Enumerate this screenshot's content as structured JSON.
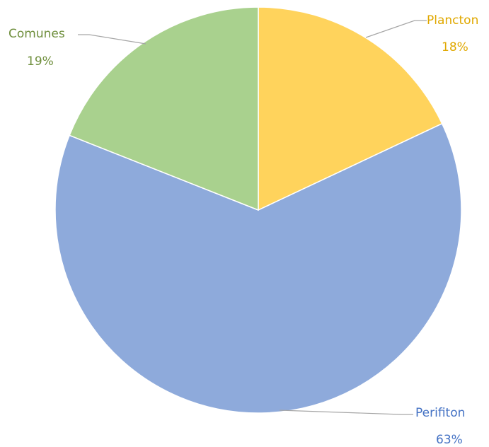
{
  "chart_data": {
    "type": "pie",
    "title": "",
    "slices": [
      {
        "label": "Plancton",
        "value": 18,
        "percent_label": "18%",
        "color": "#ffd35c",
        "label_color": "#e0a800"
      },
      {
        "label": "Perifiton",
        "value": 63,
        "percent_label": "63%",
        "color": "#8eaadb",
        "label_color": "#4472c4"
      },
      {
        "label": "Comunes",
        "value": 19,
        "percent_label": "19%",
        "color": "#a9d18e",
        "label_color": "#6f8f3d"
      }
    ],
    "start_angle_deg": 0,
    "direction": "clockwise",
    "legend": "none"
  }
}
